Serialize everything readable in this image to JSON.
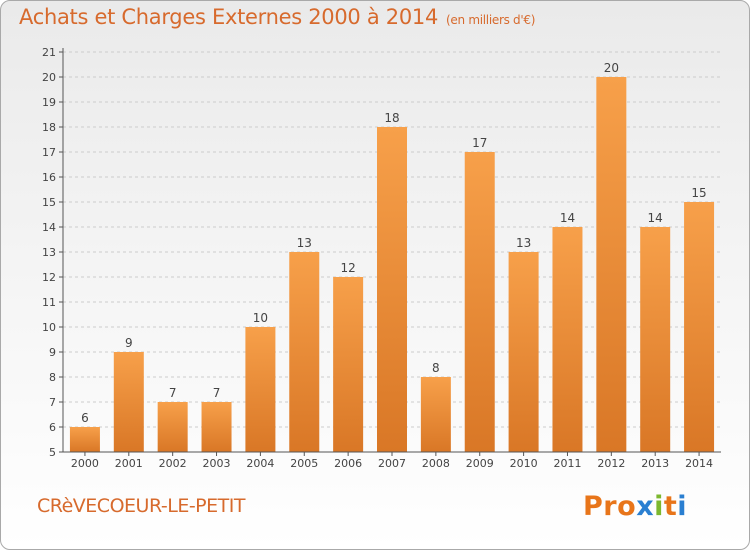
{
  "chart_title": "Achats et Charges Externes 2000 à 2014",
  "chart_unit": "(en milliers d'€)",
  "commune_name": "CRèVECOEUR-LE-PETIT",
  "logo": {
    "text": "Proxiti",
    "colors": [
      "#e8751a",
      "#e8751a",
      "#e8751a",
      "#2a7fd1",
      "#7cb82f",
      "#e8751a",
      "#2a7fd1"
    ]
  },
  "colors": {
    "title": "#d76a2d",
    "bar_light": "#f7a04a",
    "bar_dark": "#d97726",
    "gridline": "#cccccc",
    "axis": "#555555"
  },
  "chart_data": {
    "type": "bar",
    "title": "Achats et Charges Externes 2000 à 2014",
    "subtitle": "(en milliers d'€)",
    "categories": [
      "2000",
      "2001",
      "2002",
      "2003",
      "2004",
      "2005",
      "2006",
      "2007",
      "2008",
      "2009",
      "2010",
      "2011",
      "2012",
      "2013",
      "2014"
    ],
    "values": [
      6,
      9,
      7,
      7,
      10,
      13,
      12,
      18,
      8,
      17,
      13,
      14,
      20,
      14,
      15
    ],
    "ylim": [
      5,
      21
    ],
    "yticks": [
      5,
      6,
      7,
      8,
      9,
      10,
      11,
      12,
      13,
      14,
      15,
      16,
      17,
      18,
      19,
      20,
      21
    ],
    "grid": true,
    "legend": "none"
  }
}
